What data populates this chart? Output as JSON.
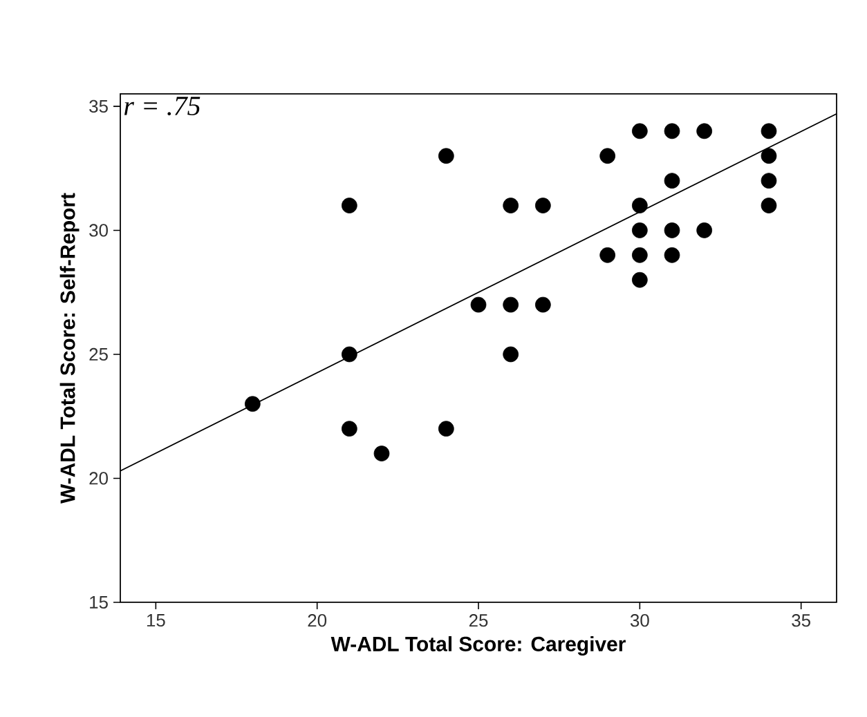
{
  "chart_data": {
    "type": "scatter",
    "xlabel": "W-ADL Total Score: Caregiver",
    "ylabel": "W-ADL Total Score: Self-Report",
    "annotations": [
      "r = .75"
    ],
    "series": [
      {
        "color": "#000000",
        "marker": "circle",
        "x": [
          18,
          21,
          21,
          21,
          22,
          24,
          24,
          25,
          26,
          26,
          26,
          27,
          27,
          29,
          29,
          30,
          30,
          30,
          30,
          30,
          31,
          31,
          31,
          31,
          32,
          32,
          34,
          34,
          34,
          34
        ],
        "values": [
          23,
          31,
          25,
          22,
          21,
          33,
          22,
          27,
          31,
          27,
          25,
          31,
          27,
          33,
          29,
          34,
          31,
          30,
          29,
          28,
          34,
          32,
          30,
          29,
          34,
          30,
          34,
          33,
          32,
          31
        ]
      },
      {
        "type": "line",
        "color": "#000000",
        "x": [
          13.9,
          36.1
        ],
        "values": [
          20.3,
          34.7
        ]
      }
    ],
    "xlim": [
      13.9,
      36.1
    ],
    "ylim": [
      15,
      35.5
    ],
    "xticks": [
      15,
      20,
      25,
      30,
      35
    ],
    "yticks": [
      15,
      20,
      25,
      30,
      35
    ],
    "grid": false
  }
}
